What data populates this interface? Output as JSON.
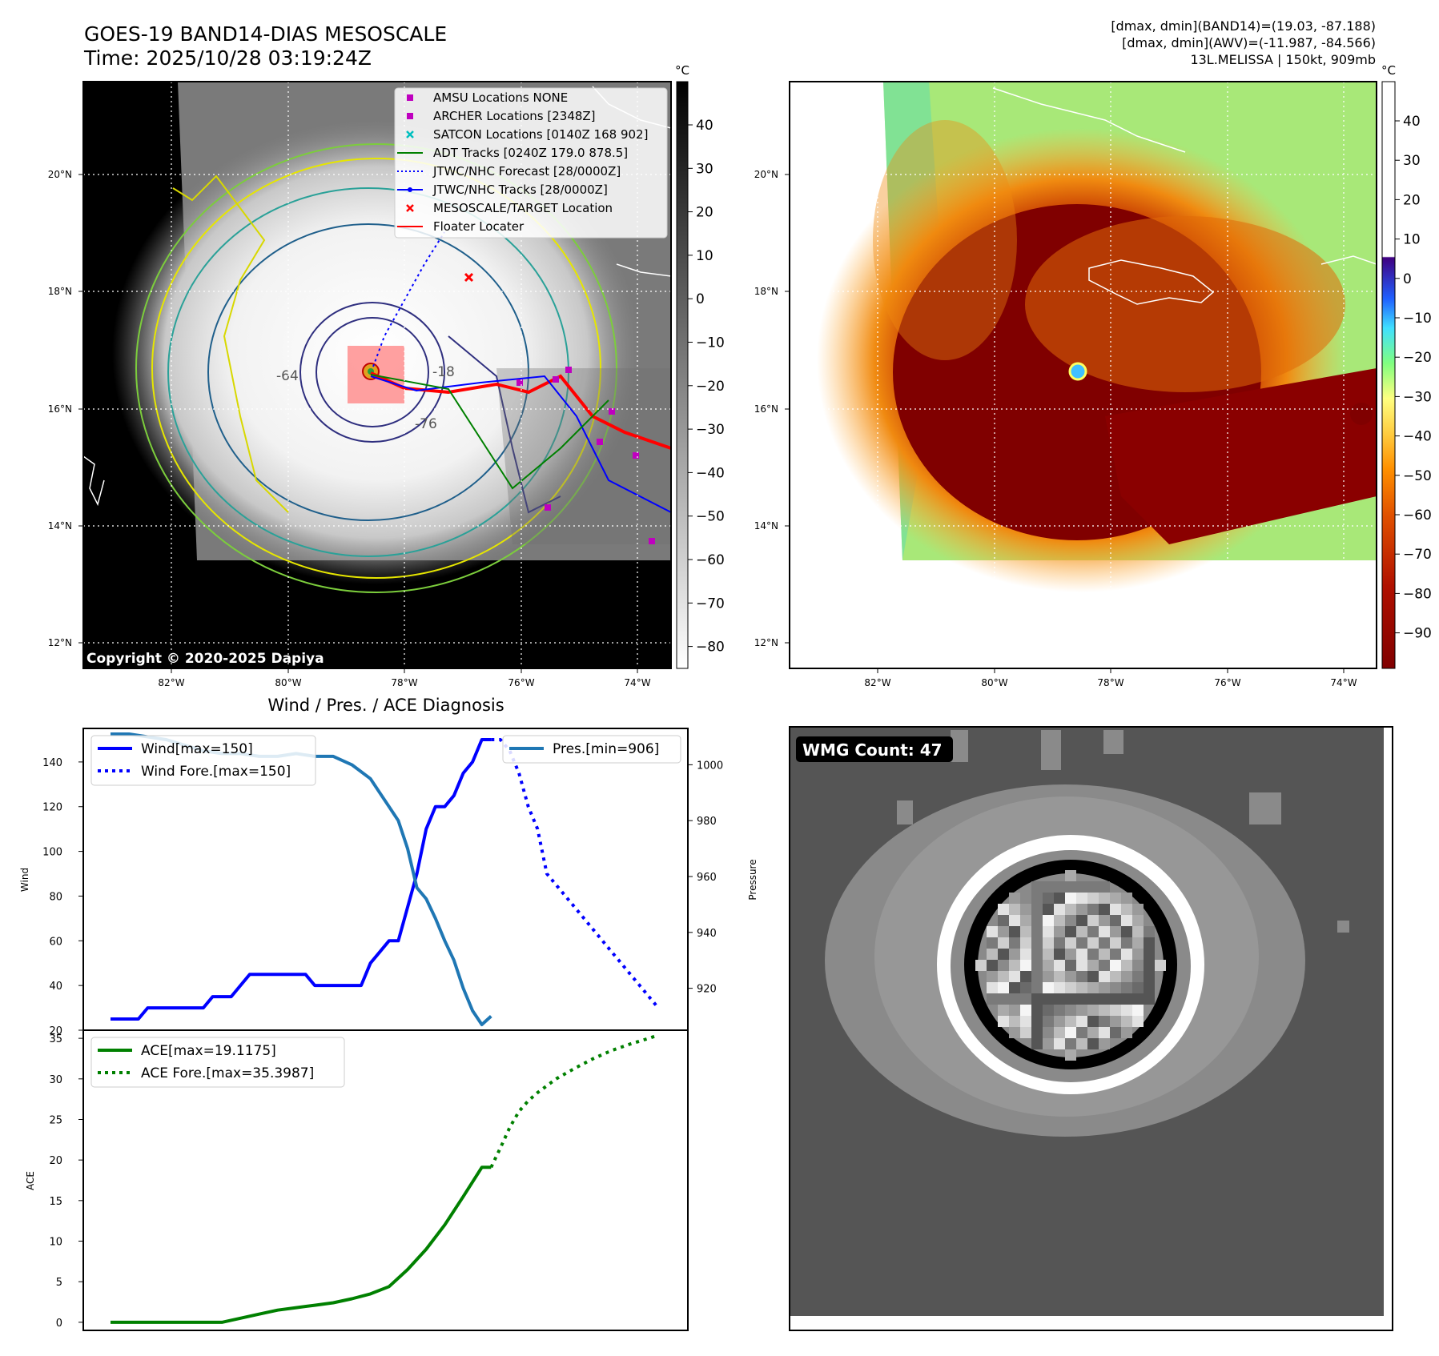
{
  "header": {
    "title_line1": "GOES-19 BAND14-DIAS MESOSCALE",
    "title_line2": "Time: 2025/10/28 03:19:24Z",
    "info_line1": "[dmax, dmin](BAND14)=(19.03, -87.188)",
    "info_line2": "[dmax, dmin](AWV)=(-11.987, -84.566)",
    "info_line3": "13L.MELISSA | 150kt, 909mb"
  },
  "colorbar_unit": "°C",
  "colors": {
    "wind": "#0000ff",
    "pressure": "#1f77b4",
    "ace": "#008000",
    "track_red": "#ff0000",
    "amsu": "#bf00bf",
    "satcon": "#00bfbf",
    "adt": "#008000",
    "jtwc": "#0000ff"
  },
  "map_axes": {
    "lon_ticks": [
      "82°W",
      "80°W",
      "78°W",
      "76°W",
      "74°W"
    ],
    "lat_ticks": [
      "20°N",
      "18°N",
      "16°N",
      "14°N",
      "12°N"
    ]
  },
  "ir_map": {
    "copyright": "Copyright © 2020-2025 Dapiya",
    "colorbar_ticks": [
      "40",
      "30",
      "20",
      "10",
      "0",
      "−10",
      "−20",
      "−30",
      "−40",
      "−50",
      "−60",
      "−70",
      "−80"
    ],
    "contour_labels": [
      "-64",
      "-76",
      "-18"
    ],
    "legend": [
      {
        "label": "AMSU Locations NONE",
        "marker": "square",
        "color": "#bf00bf"
      },
      {
        "label": "ARCHER Locations [2348Z]",
        "marker": "square",
        "color": "#bf00bf"
      },
      {
        "label": "SATCON Locations [0140Z 168 902]",
        "marker": "x",
        "color": "#00bfbf"
      },
      {
        "label": "ADT Tracks [0240Z 179.0 878.5]",
        "marker": "line",
        "color": "#008000"
      },
      {
        "label": "JTWC/NHC Forecast [28/0000Z]",
        "marker": "dotted",
        "color": "#0000ff"
      },
      {
        "label": "JTWC/NHC Tracks [28/0000Z]",
        "marker": "line-dot",
        "color": "#0000ff"
      },
      {
        "label": "MESOSCALE/TARGET Location",
        "marker": "x",
        "color": "#ff0000"
      },
      {
        "label": "Floater Locater",
        "marker": "line",
        "color": "#ff0000"
      }
    ]
  },
  "color_map": {
    "colorbar_ticks": [
      "40",
      "30",
      "20",
      "10",
      "0",
      "−10",
      "−20",
      "−30",
      "−40",
      "−50",
      "−60",
      "−70",
      "−80",
      "−90"
    ]
  },
  "wmg": {
    "label": "WMG Count: 47"
  },
  "chart_data": [
    {
      "type": "line",
      "title": "Wind / Pres. / ACE Diagnosis",
      "ylabel": "Wind",
      "y2label": "Pressure",
      "ylim": [
        20,
        155
      ],
      "y2lim": [
        905,
        1013
      ],
      "yticks": [
        "140",
        "120",
        "100",
        "80",
        "60",
        "40",
        "20"
      ],
      "y2ticks": [
        "1000",
        "980",
        "960",
        "940",
        "920"
      ],
      "series": [
        {
          "name": "Wind[max=150]",
          "style": "solid",
          "x": [
            0,
            3,
            4,
            5,
            6,
            7,
            8,
            9,
            10,
            11,
            12,
            13,
            14,
            15,
            16,
            17,
            18,
            19,
            20,
            21,
            22,
            23,
            24,
            25,
            26,
            27,
            28,
            29,
            30,
            31,
            32,
            33,
            34,
            35,
            36,
            37,
            38,
            39,
            40,
            41
          ],
          "values": [
            25,
            25,
            30,
            30,
            30,
            30,
            30,
            30,
            30,
            35,
            35,
            35,
            40,
            45,
            45,
            45,
            45,
            45,
            45,
            45,
            40,
            40,
            40,
            40,
            40,
            40,
            50,
            55,
            60,
            60,
            75,
            90,
            110,
            120,
            120,
            125,
            135,
            140,
            150,
            150
          ]
        },
        {
          "name": "Wind Fore.[max=150]",
          "style": "dotted",
          "x": [
            41,
            42,
            43,
            44,
            45,
            46,
            47,
            48,
            49,
            50,
            51,
            52,
            53,
            54,
            55,
            56,
            57,
            58,
            59
          ],
          "values": [
            150,
            150,
            145,
            135,
            120,
            110,
            90,
            85,
            80,
            75,
            70,
            65,
            60,
            55,
            50,
            45,
            40,
            35,
            30
          ]
        },
        {
          "name": "Pres.[min=906]",
          "axis": "right",
          "style": "solid",
          "x": [
            0,
            2,
            4,
            6,
            8,
            10,
            12,
            14,
            16,
            18,
            20,
            22,
            24,
            26,
            28,
            29,
            30,
            31,
            32,
            33,
            34,
            35,
            36,
            37,
            38,
            39,
            40,
            41
          ],
          "values": [
            1011,
            1011,
            1010,
            1009,
            1007,
            1005,
            1004,
            1004,
            1003,
            1003,
            1004,
            1003,
            1003,
            1000,
            995,
            990,
            985,
            980,
            970,
            956,
            952,
            945,
            937,
            930,
            920,
            912,
            907,
            910
          ]
        }
      ]
    },
    {
      "type": "line",
      "ylabel": "ACE",
      "ylim": [
        -1,
        36
      ],
      "yticks": [
        "35",
        "30",
        "25",
        "20",
        "15",
        "10",
        "5",
        "0"
      ],
      "series": [
        {
          "name": "ACE[max=19.1175]",
          "style": "solid",
          "x": [
            0,
            4,
            8,
            12,
            14,
            16,
            18,
            20,
            22,
            24,
            26,
            28,
            30,
            32,
            34,
            36,
            38,
            40,
            41
          ],
          "values": [
            0,
            0,
            0,
            0,
            0.5,
            1,
            1.5,
            1.8,
            2.1,
            2.4,
            2.9,
            3.5,
            4.4,
            6.5,
            9,
            12,
            15.5,
            19.1,
            19.1
          ]
        },
        {
          "name": "ACE Fore.[max=35.3987]",
          "style": "dotted",
          "x": [
            41,
            42,
            43,
            44,
            45,
            46,
            48,
            50,
            52,
            54,
            56,
            58,
            59
          ],
          "values": [
            19.1,
            21.5,
            24,
            26,
            27.3,
            28.3,
            30,
            31.3,
            32.5,
            33.5,
            34.3,
            35,
            35.4
          ]
        }
      ]
    }
  ]
}
